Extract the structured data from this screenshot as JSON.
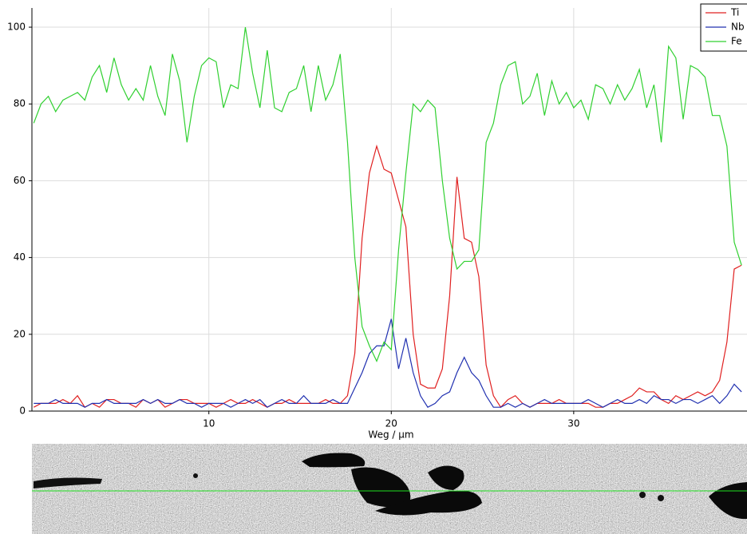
{
  "chart_data": {
    "type": "line",
    "x_label": "Weg / µm",
    "x": [
      0.4,
      0.8,
      1.2,
      1.6,
      2.0,
      2.4,
      2.8,
      3.2,
      3.6,
      4.0,
      4.4,
      4.8,
      5.2,
      5.6,
      6.0,
      6.4,
      6.8,
      7.2,
      7.6,
      8.0,
      8.4,
      8.8,
      9.2,
      9.6,
      10.0,
      10.4,
      10.8,
      11.2,
      11.6,
      12.0,
      12.4,
      12.8,
      13.2,
      13.6,
      14.0,
      14.4,
      14.8,
      15.2,
      15.6,
      16.0,
      16.4,
      16.8,
      17.2,
      17.6,
      18.0,
      18.4,
      18.8,
      19.2,
      19.6,
      20.0,
      20.4,
      20.8,
      21.2,
      21.6,
      22.0,
      22.4,
      22.8,
      23.2,
      23.6,
      24.0,
      24.4,
      24.8,
      25.2,
      25.6,
      26.0,
      26.4,
      26.8,
      27.2,
      27.6,
      28.0,
      28.4,
      28.8,
      29.2,
      29.6,
      30.0,
      30.4,
      30.8,
      31.2,
      31.6,
      32.0,
      32.4,
      32.8,
      33.2,
      33.6,
      34.0,
      34.4,
      34.8,
      35.2,
      35.6,
      36.0,
      36.4,
      36.8,
      37.2,
      37.6,
      38.0,
      38.4,
      38.8,
      39.2
    ],
    "series": [
      {
        "name": "Ti",
        "color": "#e02020",
        "values": [
          1,
          2,
          2,
          2,
          3,
          2,
          4,
          1,
          2,
          1,
          3,
          3,
          2,
          2,
          1,
          3,
          2,
          3,
          1,
          2,
          3,
          3,
          2,
          2,
          2,
          1,
          2,
          3,
          2,
          2,
          3,
          2,
          1,
          2,
          2,
          3,
          2,
          2,
          2,
          2,
          3,
          2,
          2,
          4,
          15,
          45,
          62,
          69,
          63,
          62,
          55,
          48,
          20,
          7,
          6,
          6,
          11,
          30,
          61,
          45,
          44,
          35,
          12,
          4,
          1,
          3,
          4,
          2,
          1,
          2,
          2,
          2,
          3,
          2,
          2,
          2,
          2,
          1,
          1,
          2,
          2,
          3,
          4,
          6,
          5,
          5,
          3,
          2,
          4,
          3,
          4,
          5,
          4,
          5,
          8,
          18,
          37,
          38
        ]
      },
      {
        "name": "Nb",
        "color": "#2030b0",
        "values": [
          2,
          2,
          2,
          3,
          2,
          2,
          2,
          1,
          2,
          2,
          3,
          2,
          2,
          2,
          2,
          3,
          2,
          3,
          2,
          2,
          3,
          2,
          2,
          1,
          2,
          2,
          2,
          1,
          2,
          3,
          2,
          3,
          1,
          2,
          3,
          2,
          2,
          4,
          2,
          2,
          2,
          3,
          2,
          2,
          6,
          10,
          15,
          17,
          17,
          24,
          11,
          19,
          10,
          4,
          1,
          2,
          4,
          5,
          10,
          14,
          10,
          8,
          4,
          1,
          1,
          2,
          1,
          2,
          1,
          2,
          3,
          2,
          2,
          2,
          2,
          2,
          3,
          2,
          1,
          2,
          3,
          2,
          2,
          3,
          2,
          4,
          3,
          3,
          2,
          3,
          3,
          2,
          3,
          4,
          2,
          4,
          7,
          5
        ]
      },
      {
        "name": "Fe",
        "color": "#30d030",
        "values": [
          75,
          80,
          82,
          78,
          81,
          82,
          83,
          81,
          87,
          90,
          83,
          92,
          85,
          81,
          84,
          81,
          90,
          82,
          77,
          93,
          86,
          70,
          82,
          90,
          92,
          91,
          79,
          85,
          84,
          100,
          88,
          79,
          94,
          79,
          78,
          83,
          84,
          90,
          78,
          90,
          81,
          85,
          93,
          70,
          40,
          22,
          17,
          13,
          18,
          16,
          42,
          62,
          80,
          78,
          81,
          79,
          60,
          45,
          37,
          39,
          39,
          42,
          70,
          75,
          85,
          90,
          91,
          80,
          82,
          88,
          77,
          86,
          80,
          83,
          79,
          81,
          76,
          85,
          84,
          80,
          85,
          81,
          84,
          89,
          79,
          85,
          70,
          95,
          92,
          76,
          90,
          89,
          87,
          77,
          77,
          69,
          44,
          38
        ]
      }
    ],
    "xlim": [
      0.3,
      39.5
    ],
    "xticks": [
      10,
      20,
      30
    ],
    "ylim": [
      0,
      105
    ],
    "yticks": [
      0,
      20,
      40,
      60,
      80,
      100
    ],
    "grid": true,
    "legend": "top-right"
  }
}
